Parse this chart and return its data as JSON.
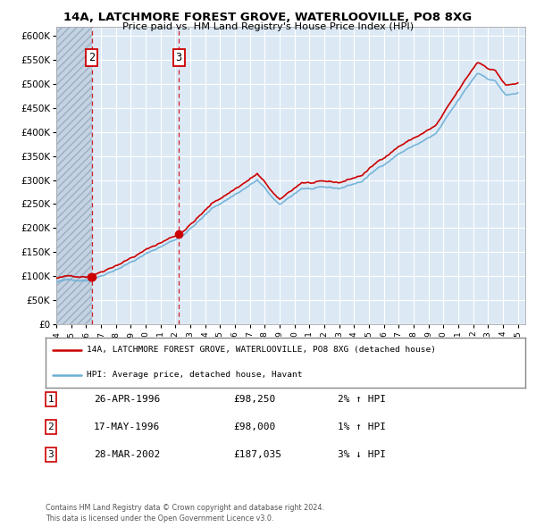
{
  "title1": "14A, LATCHMORE FOREST GROVE, WATERLOOVILLE, PO8 8XG",
  "title2": "Price paid vs. HM Land Registry's House Price Index (HPI)",
  "legend_line1": "14A, LATCHMORE FOREST GROVE, WATERLOOVILLE, PO8 8XG (detached house)",
  "legend_line2": "HPI: Average price, detached house, Havant",
  "footer1": "Contains HM Land Registry data © Crown copyright and database right 2024.",
  "footer2": "This data is licensed under the Open Government Licence v3.0.",
  "sale_info": [
    {
      "label": "1",
      "date_num": 1996.32,
      "price": 98250,
      "pct_str": "2%",
      "dir": "↑",
      "date_str": "26-APR-1996",
      "price_str": "£98,250"
    },
    {
      "label": "2",
      "date_num": 1996.38,
      "price": 98000,
      "pct_str": "1%",
      "dir": "↑",
      "date_str": "17-MAY-1996",
      "price_str": "£98,000"
    },
    {
      "label": "3",
      "date_num": 2002.23,
      "price": 187035,
      "pct_str": "3%",
      "dir": "↓",
      "date_str": "28-MAR-2002",
      "price_str": "£187,035"
    }
  ],
  "vline_labels": [
    "2",
    "3"
  ],
  "vline_dates": [
    1996.38,
    2002.23
  ],
  "xmin": 1994.0,
  "xmax": 2025.5,
  "ymin": 0,
  "ymax": 620000,
  "yticks": [
    0,
    50000,
    100000,
    150000,
    200000,
    250000,
    300000,
    350000,
    400000,
    450000,
    500000,
    550000,
    600000
  ],
  "hpi_color": "#6baed6",
  "price_color": "#cc0000",
  "plot_bg": "#dce9f5",
  "grid_color": "#ffffff",
  "hatch_color": "#b8c8d8"
}
